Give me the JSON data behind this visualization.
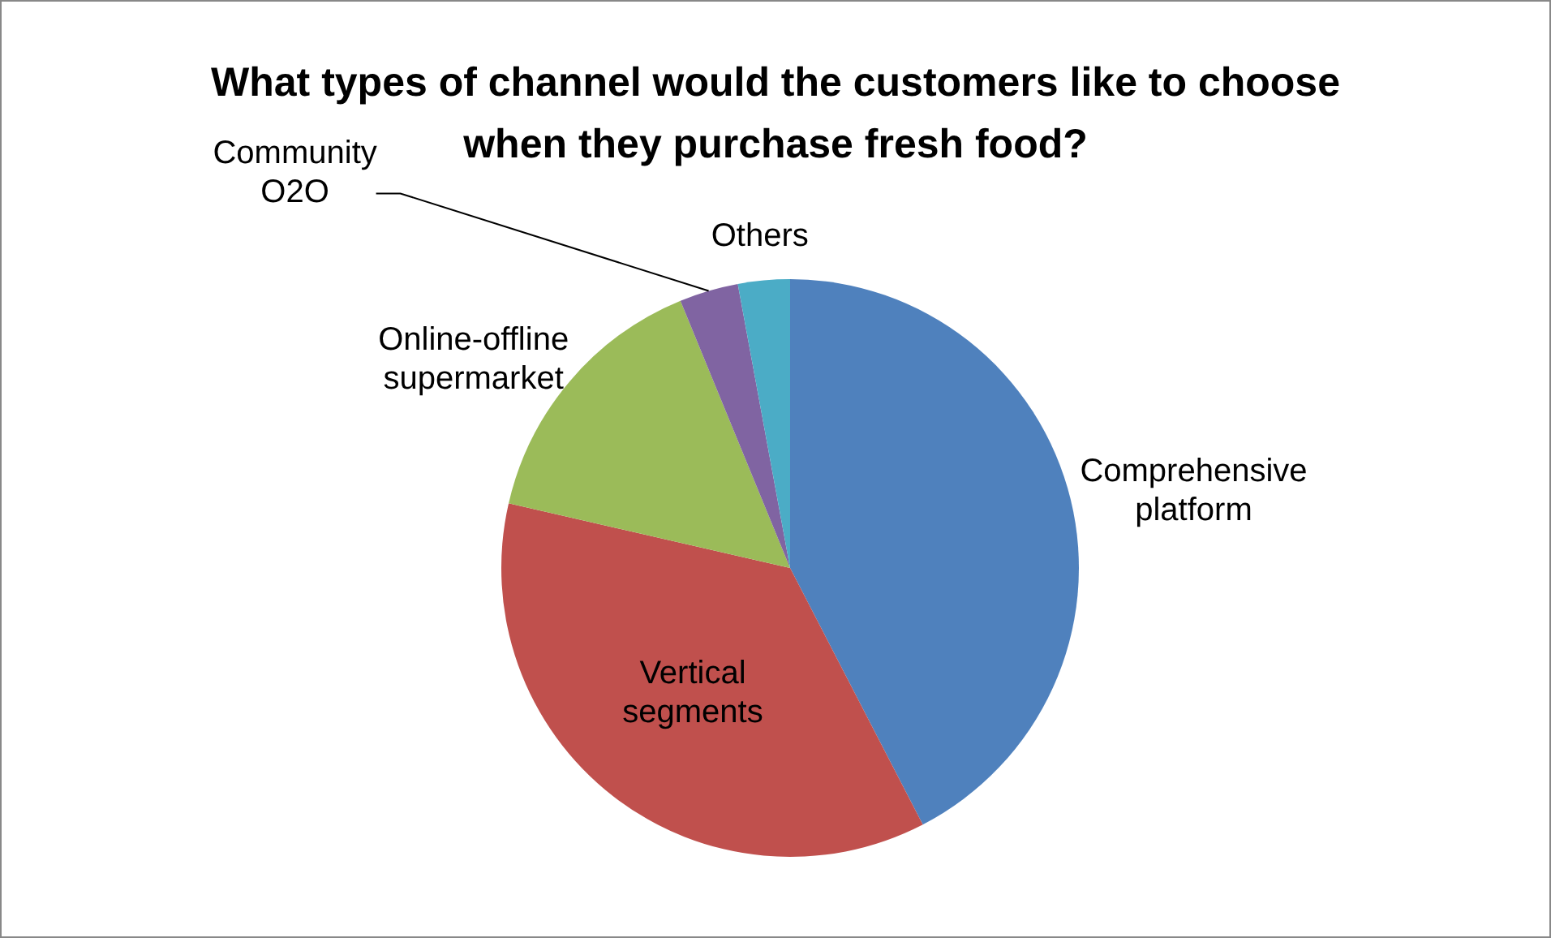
{
  "chart_data": {
    "type": "pie",
    "title": "What types of channel would the customers like to choose when they purchase fresh food?",
    "categories": [
      "Comprehensive platform",
      "Vertical segments",
      "Online-offline supermarket",
      "Community O2O",
      "Others"
    ],
    "values": [
      42.4,
      36.2,
      15.2,
      3.3,
      2.9
    ],
    "colors": [
      "#4f81bd",
      "#c0504d",
      "#9bbb59",
      "#8064a2",
      "#4bacc6"
    ],
    "legend": false
  }
}
